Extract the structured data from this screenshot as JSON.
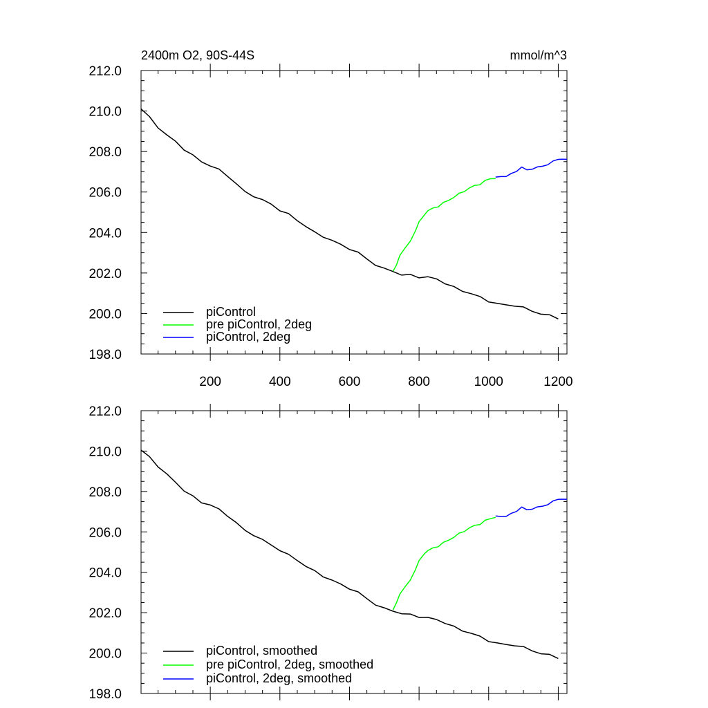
{
  "chart_data": [
    {
      "type": "line",
      "title": "2400m O2, 90S-44S",
      "units": "mmol/m^3",
      "ylim": [
        198,
        212
      ],
      "xlim": [
        1,
        1225
      ],
      "yticks": [
        198,
        200,
        202,
        204,
        206,
        208,
        210,
        212
      ],
      "ytick_labels": [
        "198.0",
        "200.0",
        "202.0",
        "204.0",
        "206.0",
        "208.0",
        "210.0",
        "212.0"
      ],
      "xticks": [
        200,
        400,
        600,
        800,
        1000,
        1200
      ],
      "xtick_labels": [
        "200",
        "400",
        "600",
        "800",
        "1000",
        "1200"
      ],
      "legend_position": "bottom-left",
      "series": [
        {
          "name": "piControl",
          "color": "#000000",
          "x": [
            1,
            25,
            50,
            75,
            100,
            125,
            150,
            175,
            200,
            225,
            250,
            275,
            300,
            325,
            350,
            375,
            400,
            425,
            450,
            475,
            500,
            525,
            550,
            575,
            600,
            625,
            650,
            675,
            700,
            725,
            750,
            775,
            800,
            825,
            850,
            875,
            900,
            925,
            950,
            975,
            1000,
            1025,
            1050,
            1075,
            1100,
            1125,
            1150,
            1175,
            1200
          ],
          "y": [
            210.1,
            209.7,
            209.2,
            208.8,
            208.5,
            208.1,
            207.8,
            207.5,
            207.3,
            207.1,
            206.8,
            206.4,
            206.0,
            205.8,
            205.6,
            205.4,
            205.1,
            204.9,
            204.6,
            204.3,
            204.0,
            203.8,
            203.6,
            203.4,
            203.2,
            203.0,
            202.7,
            202.4,
            202.2,
            202.1,
            201.9,
            201.9,
            201.8,
            201.8,
            201.7,
            201.5,
            201.3,
            201.1,
            201.0,
            200.8,
            200.6,
            200.5,
            200.4,
            200.4,
            200.3,
            200.1,
            200.0,
            199.9,
            199.75
          ]
        },
        {
          "name": "pre piControl, 2deg",
          "color": "#00ff00",
          "x": [
            725,
            735,
            745,
            760,
            775,
            790,
            800,
            815,
            825,
            840,
            855,
            870,
            885,
            900,
            915,
            930,
            945,
            960,
            975,
            990,
            1005,
            1020
          ],
          "y": [
            202.05,
            202.4,
            202.9,
            203.2,
            203.6,
            204.1,
            204.5,
            204.9,
            205.05,
            205.2,
            205.3,
            205.45,
            205.6,
            205.75,
            205.9,
            206.05,
            206.2,
            206.3,
            206.4,
            206.55,
            206.65,
            206.7
          ]
        },
        {
          "name": "piControl, 2deg",
          "color": "#0000ff",
          "x": [
            1020,
            1035,
            1050,
            1065,
            1080,
            1095,
            1110,
            1125,
            1140,
            1155,
            1170,
            1185,
            1200,
            1210,
            1225
          ],
          "y": [
            206.7,
            206.8,
            206.75,
            206.9,
            207.05,
            207.2,
            207.1,
            207.15,
            207.2,
            207.3,
            207.35,
            207.5,
            207.65,
            207.6,
            207.6
          ]
        }
      ]
    },
    {
      "type": "line",
      "ylim": [
        198,
        212
      ],
      "xlim": [
        1,
        1225
      ],
      "yticks": [
        198,
        200,
        202,
        204,
        206,
        208,
        210,
        212
      ],
      "ytick_labels": [
        "198.0",
        "200.0",
        "202.0",
        "204.0",
        "206.0",
        "208.0",
        "210.0",
        "212.0"
      ],
      "legend_position": "bottom-left",
      "series": [
        {
          "name": "piControl, smoothed",
          "color": "#000000",
          "x": [
            1,
            25,
            50,
            75,
            100,
            125,
            150,
            175,
            200,
            225,
            250,
            275,
            300,
            325,
            350,
            375,
            400,
            425,
            450,
            475,
            500,
            525,
            550,
            575,
            600,
            625,
            650,
            675,
            700,
            725,
            750,
            775,
            800,
            825,
            850,
            875,
            900,
            925,
            950,
            975,
            1000,
            1025,
            1050,
            1075,
            1100,
            1125,
            1150,
            1175,
            1200
          ],
          "y": [
            210.05,
            209.7,
            209.25,
            208.85,
            208.45,
            208.05,
            207.75,
            207.45,
            207.35,
            207.1,
            206.8,
            206.45,
            206.05,
            205.85,
            205.6,
            205.35,
            205.1,
            204.85,
            204.6,
            204.3,
            204.05,
            203.8,
            203.6,
            203.4,
            203.2,
            203.0,
            202.7,
            202.4,
            202.2,
            202.1,
            201.95,
            201.9,
            201.8,
            201.75,
            201.65,
            201.5,
            201.3,
            201.1,
            201.0,
            200.8,
            200.6,
            200.5,
            200.4,
            200.4,
            200.3,
            200.1,
            200.0,
            199.9,
            199.75
          ]
        },
        {
          "name": "pre piControl, 2deg, smoothed",
          "color": "#00ff00",
          "x": [
            725,
            735,
            745,
            760,
            775,
            790,
            800,
            815,
            825,
            840,
            855,
            870,
            885,
            900,
            915,
            930,
            945,
            960,
            975,
            990,
            1005,
            1020
          ],
          "y": [
            202.1,
            202.5,
            202.95,
            203.25,
            203.65,
            204.15,
            204.55,
            204.95,
            205.05,
            205.2,
            205.3,
            205.45,
            205.6,
            205.75,
            205.9,
            206.05,
            206.2,
            206.3,
            206.4,
            206.55,
            206.65,
            206.75
          ]
        },
        {
          "name": "piControl, 2deg, smoothed",
          "color": "#0000ff",
          "x": [
            1020,
            1035,
            1050,
            1065,
            1080,
            1095,
            1110,
            1125,
            1140,
            1155,
            1170,
            1185,
            1200,
            1210,
            1225
          ],
          "y": [
            206.75,
            206.8,
            206.75,
            206.9,
            207.05,
            207.2,
            207.1,
            207.15,
            207.2,
            207.3,
            207.35,
            207.5,
            207.65,
            207.6,
            207.6
          ]
        }
      ]
    }
  ]
}
